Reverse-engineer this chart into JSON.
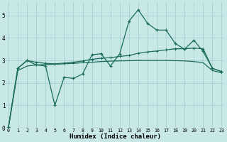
{
  "x": [
    0,
    1,
    2,
    3,
    4,
    5,
    6,
    7,
    8,
    9,
    10,
    11,
    12,
    13,
    14,
    15,
    16,
    17,
    18,
    19,
    20,
    21,
    22,
    23
  ],
  "y_volatile": [
    0.05,
    2.65,
    3.0,
    2.8,
    2.75,
    1.0,
    2.25,
    2.2,
    2.4,
    3.25,
    3.3,
    2.75,
    3.3,
    4.75,
    5.25,
    4.65,
    4.35,
    4.35,
    3.75,
    3.5,
    3.9,
    3.4,
    2.65,
    2.5
  ],
  "y_smooth1": [
    0.05,
    2.65,
    3.0,
    2.92,
    2.87,
    2.85,
    2.88,
    2.92,
    2.98,
    3.05,
    3.1,
    3.12,
    3.18,
    3.22,
    3.32,
    3.38,
    3.42,
    3.47,
    3.52,
    3.52,
    3.55,
    3.52,
    2.65,
    2.5
  ],
  "y_smooth2": [
    0.05,
    2.55,
    2.75,
    2.8,
    2.82,
    2.83,
    2.85,
    2.87,
    2.9,
    2.92,
    2.95,
    2.97,
    2.98,
    2.99,
    3.0,
    3.0,
    3.0,
    3.0,
    2.99,
    2.98,
    2.95,
    2.9,
    2.55,
    2.45
  ],
  "line_color": "#1a6b5a",
  "bg_color": "#c8e8e8",
  "grid_color": "#acd4d4",
  "xlabel": "Humidex (Indice chaleur)",
  "ylim": [
    0,
    5.6
  ],
  "xlim": [
    -0.3,
    23.3
  ]
}
